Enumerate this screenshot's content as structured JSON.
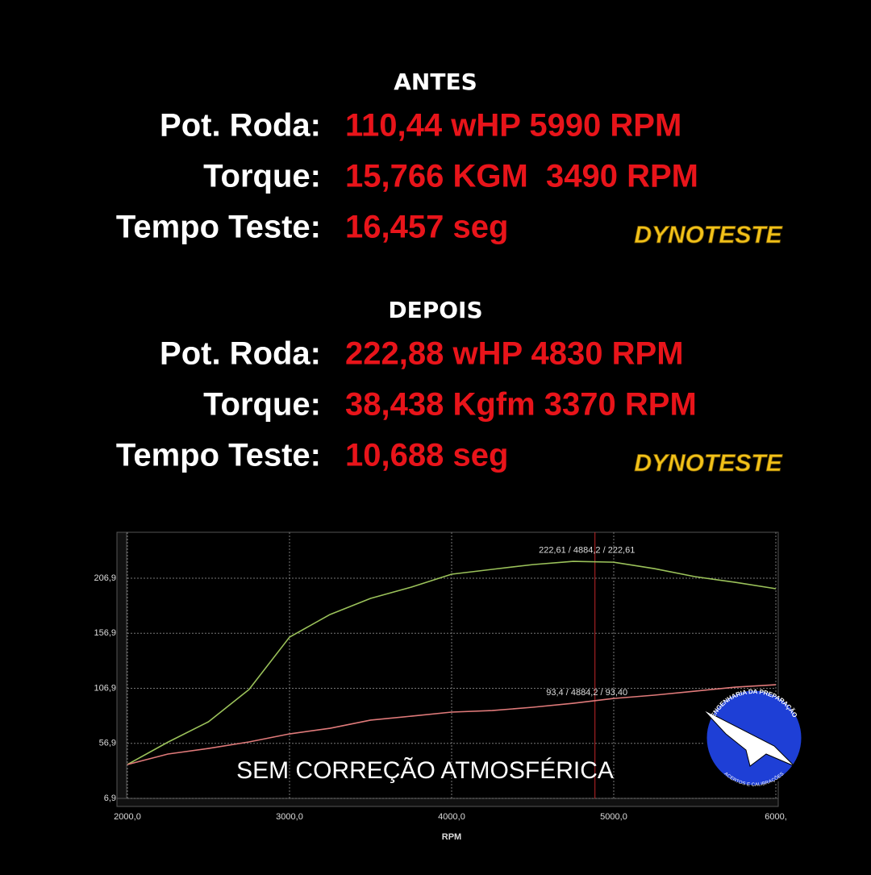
{
  "antes": {
    "title": "ANTES",
    "rows": [
      {
        "label": "Pot. Roda:",
        "value": "110,44 wHP 5990 RPM"
      },
      {
        "label": "Torque:",
        "value": "15,766 KGM  3490 RPM"
      },
      {
        "label": "Tempo Teste:",
        "value": "16,457 seg"
      }
    ],
    "brand": "DYNOTESTE"
  },
  "depois": {
    "title": "DEPOIS",
    "rows": [
      {
        "label": "Pot. Roda:",
        "value": "222,88 wHP 4830 RPM"
      },
      {
        "label": "Torque:",
        "value": "38,438 Kgfm 3370 RPM"
      },
      {
        "label": "Tempo Teste:",
        "value": "10,688 seg"
      }
    ],
    "brand": "DYNOTESTE"
  },
  "logo": {
    "top": "ENGENHARIA DA PREPARAÇÃO",
    "bottom": "ACERTOS E CALIBRAÇÕES"
  },
  "chart_data": {
    "type": "line",
    "x": [
      2000,
      2250,
      2500,
      2750,
      3000,
      3250,
      3500,
      3750,
      4000,
      4250,
      4500,
      4750,
      5000,
      5250,
      5500,
      5750,
      6000
    ],
    "series": [
      {
        "color": "#9bc25a",
        "values": [
          37.7,
          58,
          76.5,
          105.8,
          153.4,
          174,
          188.6,
          198.8,
          210.6,
          215,
          219.3,
          222.3,
          221.5,
          215.7,
          208.4,
          203.2,
          197.4
        ]
      },
      {
        "color": "#e07a7a",
        "values": [
          37.7,
          47.2,
          52.3,
          58.2,
          65.5,
          70.6,
          78,
          81.6,
          85.3,
          86.7,
          89.7,
          93.3,
          97.7,
          100.7,
          104.3,
          108,
          110.2
        ]
      }
    ],
    "xlim": [
      2000,
      6000
    ],
    "ylim": [
      6.9,
      248.7
    ],
    "xticks": [
      {
        "value": 2000,
        "label": "2000,0"
      },
      {
        "value": 3000,
        "label": "3000,0"
      },
      {
        "value": 4000,
        "label": "4000,0"
      },
      {
        "value": 5000,
        "label": "5000,0"
      },
      {
        "value": 6000,
        "label": "6000,"
      }
    ],
    "yticks": [
      {
        "value": 6.9,
        "label": "6,9"
      },
      {
        "value": 56.9,
        "label": "56,9"
      },
      {
        "value": 106.9,
        "label": "106,9"
      },
      {
        "value": 156.9,
        "label": "156,9"
      },
      {
        "value": 206.9,
        "label": "206,9"
      }
    ],
    "grid": true,
    "xlabel": "RPM",
    "cursor_x": 4884.2,
    "cursor_color": "#c0262a",
    "annotations": [
      {
        "text": "222,61 / 4884,2 / 222,61",
        "x": 4884.2,
        "y": 222.61,
        "color": "#9bc25a"
      },
      {
        "text": "93,4 / 4884,2 / 93,40",
        "x": 4884.2,
        "y": 93.4,
        "color": "#e07a7a"
      }
    ],
    "overlay": "SEM CORREÇÃO ATMOSFÉRICA"
  }
}
